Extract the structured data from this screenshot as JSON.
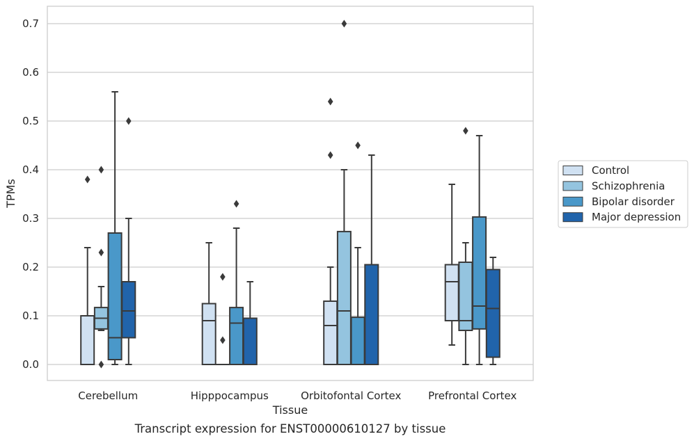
{
  "chart_data": {
    "type": "box",
    "xlabel": "Tissue",
    "ylabel": "TPMs",
    "caption": "Transcript expression for ENST00000610127 by tissue",
    "ylim": [
      -0.035,
      0.735
    ],
    "yticks": [
      0.0,
      0.1,
      0.2,
      0.3,
      0.4,
      0.5,
      0.6,
      0.7
    ],
    "ytick_labels": [
      "0.0",
      "0.1",
      "0.2",
      "0.3",
      "0.4",
      "0.5",
      "0.6",
      "0.7"
    ],
    "categories": [
      "Cerebellum",
      "Hipppocampus",
      "Orbitofontal Cortex",
      "Prefrontal Cortex"
    ],
    "grid": true,
    "legend_position": "right",
    "series": [
      {
        "name": "Control",
        "color": "#d0e1f2",
        "boxes": [
          {
            "whislo": 0.0,
            "q1": 0.0,
            "med": 0.0,
            "q3": 0.1,
            "whishi": 0.24,
            "fliers": [
              0.38
            ]
          },
          {
            "whislo": 0.0,
            "q1": 0.0,
            "med": 0.09,
            "q3": 0.125,
            "whishi": 0.25,
            "fliers": []
          },
          {
            "whislo": 0.0,
            "q1": 0.0,
            "med": 0.08,
            "q3": 0.13,
            "whishi": 0.2,
            "fliers": [
              0.43,
              0.54
            ]
          },
          {
            "whislo": 0.04,
            "q1": 0.09,
            "med": 0.17,
            "q3": 0.205,
            "whishi": 0.37,
            "fliers": []
          }
        ]
      },
      {
        "name": "Schizophrenia",
        "color": "#94c4df",
        "boxes": [
          {
            "whislo": 0.07,
            "q1": 0.073,
            "med": 0.095,
            "q3": 0.117,
            "whishi": 0.16,
            "fliers": [
              0.0,
              0.23,
              0.4
            ]
          },
          {
            "whislo": 0.0,
            "q1": 0.0,
            "med": 0.0,
            "q3": 0.0,
            "whishi": 0.0,
            "fliers": [
              0.05,
              0.18
            ]
          },
          {
            "whislo": 0.0,
            "q1": 0.0,
            "med": 0.11,
            "q3": 0.273,
            "whishi": 0.4,
            "fliers": [
              0.7
            ]
          },
          {
            "whislo": 0.0,
            "q1": 0.07,
            "med": 0.09,
            "q3": 0.21,
            "whishi": 0.25,
            "fliers": [
              0.48
            ]
          }
        ]
      },
      {
        "name": "Bipolar disorder",
        "color": "#4a98c9",
        "boxes": [
          {
            "whislo": 0.0,
            "q1": 0.01,
            "med": 0.055,
            "q3": 0.27,
            "whishi": 0.56,
            "fliers": []
          },
          {
            "whislo": 0.0,
            "q1": 0.0,
            "med": 0.085,
            "q3": 0.117,
            "whishi": 0.28,
            "fliers": [
              0.33
            ]
          },
          {
            "whislo": 0.0,
            "q1": 0.0,
            "med": 0.0,
            "q3": 0.097,
            "whishi": 0.24,
            "fliers": [
              0.45
            ]
          },
          {
            "whislo": 0.0,
            "q1": 0.073,
            "med": 0.12,
            "q3": 0.303,
            "whishi": 0.47,
            "fliers": []
          }
        ]
      },
      {
        "name": "Major depression",
        "color": "#2164ab",
        "boxes": [
          {
            "whislo": 0.0,
            "q1": 0.055,
            "med": 0.11,
            "q3": 0.17,
            "whishi": 0.3,
            "fliers": [
              0.5
            ]
          },
          {
            "whislo": 0.0,
            "q1": 0.0,
            "med": 0.0,
            "q3": 0.095,
            "whishi": 0.17,
            "fliers": []
          },
          {
            "whislo": 0.0,
            "q1": 0.0,
            "med": 0.0,
            "q3": 0.205,
            "whishi": 0.43,
            "fliers": []
          },
          {
            "whislo": 0.0,
            "q1": 0.015,
            "med": 0.115,
            "q3": 0.195,
            "whishi": 0.22,
            "fliers": []
          }
        ]
      }
    ]
  }
}
